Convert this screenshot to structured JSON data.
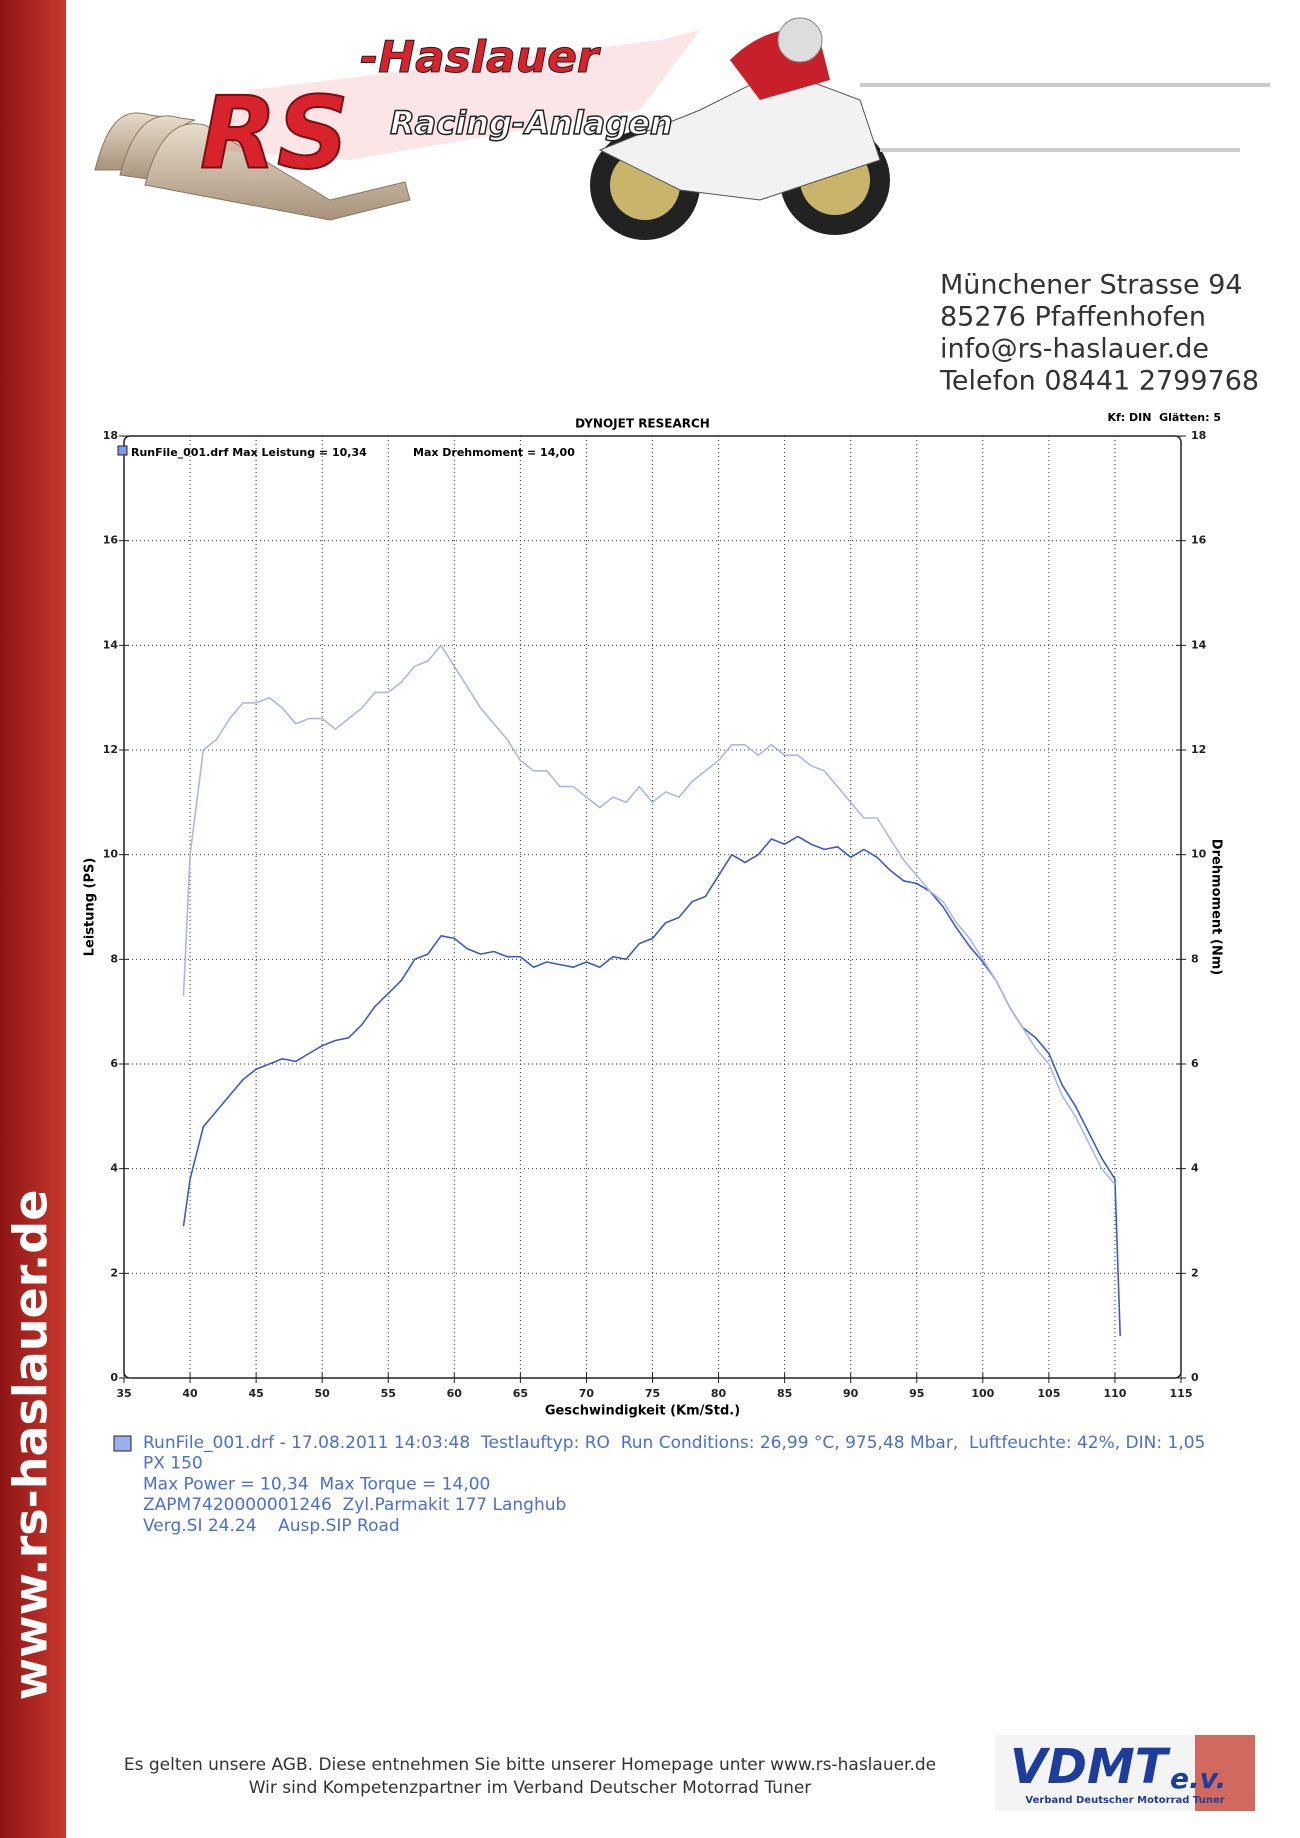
{
  "header": {
    "logo_mark": "RS",
    "logo_title": "-Haslauer",
    "logo_subtitle": "Racing-Anlagen",
    "address": [
      "Münchener Strasse 94",
      "85276 Pfaffenhofen",
      "info@rs-haslauer.de",
      "Telefon 08441 2799768"
    ]
  },
  "sidebar": "www.rs-haslauer.de",
  "chart_data": {
    "type": "line",
    "title": "DYNOJET RESEARCH",
    "subtitle": "Kf: DIN  Glätten: 5",
    "annotations": [
      "RunFile_001.drf Max Leistung = 10,34",
      "Max Drehmoment = 14,00"
    ],
    "x_label": "Geschwindigkeit (Km/Std.)",
    "y_label": "Leistung (PS)",
    "y2_label": "Drehmoment (Nm)",
    "x": [
      39.5,
      40,
      41,
      42,
      43,
      44,
      45,
      46,
      47,
      48,
      49,
      50,
      51,
      52,
      53,
      54,
      55,
      56,
      57,
      58,
      59,
      60,
      61,
      62,
      63,
      64,
      65,
      66,
      67,
      68,
      69,
      70,
      71,
      72,
      73,
      74,
      75,
      76,
      77,
      78,
      79,
      80,
      81,
      82,
      83,
      84,
      85,
      86,
      87,
      88,
      89,
      90,
      91,
      92,
      93,
      94,
      95,
      96,
      97,
      98,
      99,
      100,
      101,
      102,
      103,
      104,
      105,
      106,
      107,
      108,
      109,
      110,
      110.4
    ],
    "series": [
      {
        "color": "#3a5cc8",
        "axis": "y",
        "values": [
          2.9,
          3.8,
          4.8,
          5.1,
          5.4,
          5.7,
          5.9,
          6.0,
          6.1,
          6.05,
          6.2,
          6.35,
          6.45,
          6.5,
          6.75,
          7.1,
          7.35,
          7.6,
          8.0,
          8.1,
          8.45,
          8.4,
          8.2,
          8.1,
          8.15,
          8.05,
          8.05,
          7.85,
          7.95,
          7.9,
          7.85,
          7.95,
          7.85,
          8.05,
          8.0,
          8.3,
          8.4,
          8.7,
          8.8,
          9.1,
          9.2,
          9.6,
          10.0,
          9.85,
          10.0,
          10.3,
          10.2,
          10.35,
          10.2,
          10.1,
          10.15,
          9.95,
          10.1,
          9.95,
          9.7,
          9.5,
          9.45,
          9.3,
          9.0,
          8.6,
          8.25,
          7.95,
          7.6,
          7.1,
          6.7,
          6.5,
          6.2,
          5.6,
          5.2,
          4.7,
          4.2,
          3.8,
          0.8
        ]
      },
      {
        "color": "#aab8e8",
        "axis": "y2",
        "values": [
          7.3,
          10.0,
          12.0,
          12.2,
          12.6,
          12.9,
          12.9,
          13.0,
          12.8,
          12.5,
          12.6,
          12.6,
          12.4,
          12.6,
          12.8,
          13.1,
          13.1,
          13.3,
          13.6,
          13.7,
          14.0,
          13.6,
          13.2,
          12.8,
          12.5,
          12.2,
          11.8,
          11.6,
          11.6,
          11.3,
          11.3,
          11.1,
          10.9,
          11.1,
          11.0,
          11.3,
          11.0,
          11.2,
          11.1,
          11.4,
          11.6,
          11.8,
          12.1,
          12.1,
          11.9,
          12.1,
          11.9,
          11.9,
          11.7,
          11.6,
          11.3,
          11.0,
          10.7,
          10.7,
          10.3,
          9.9,
          9.6,
          9.3,
          9.1,
          8.7,
          8.4,
          8.0,
          7.6,
          7.1,
          6.7,
          6.3,
          6.0,
          5.4,
          5.0,
          4.5,
          4.0,
          3.7,
          null
        ]
      }
    ],
    "xlim": [
      35,
      115
    ],
    "xticks": [
      35,
      40,
      45,
      50,
      55,
      60,
      65,
      70,
      75,
      80,
      85,
      90,
      95,
      100,
      105,
      110,
      115
    ],
    "ylim": [
      0,
      18
    ],
    "yticks": [
      0,
      2,
      4,
      6,
      8,
      10,
      12,
      14,
      16,
      18
    ],
    "y2lim": [
      0,
      18
    ],
    "y2ticks": [
      0,
      2,
      4,
      6,
      8,
      10,
      12,
      14,
      16,
      18
    ],
    "grid": true
  },
  "run_info": [
    "RunFile_001.drf - 17.08.2011 14:03:48  Testlauftyp: RO  Run Conditions: 26,99 °C, 975,48 Mbar,  Luftfeuchte: 42%, DIN: 1,05",
    "PX 150",
    "Max Power = 10,34  Max Torque = 14,00",
    "ZAPM7420000001246  Zyl.Parmakit 177 Langhub",
    "Verg.SI 24.24    Ausp.SIP Road"
  ],
  "footer": {
    "lines": [
      "Es gelten unsere AGB. Diese entnehmen Sie bitte unserer Homepage unter www.rs-haslauer.de",
      "Wir sind Kompetenzpartner im Verband Deutscher Motorrad Tuner"
    ],
    "badge": "VDMT",
    "badge_suffix": "e.v.",
    "badge_caption": "Verband Deutscher Motorrad Tuner"
  }
}
